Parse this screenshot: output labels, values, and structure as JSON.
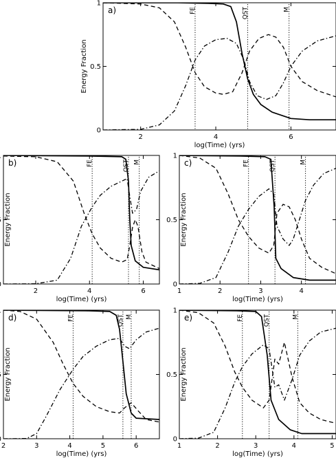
{
  "chart_data": [
    {
      "panel": "a)",
      "type": "line",
      "xlabel": "log(Time)  (yrs)",
      "ylabel": "Energy  Fraction",
      "xlim": [
        1,
        7.2
      ],
      "ylim": [
        0,
        1
      ],
      "xticks": [
        2,
        4,
        6
      ],
      "yticks": [
        0,
        0.5,
        1
      ],
      "markers": [
        {
          "label": "FE",
          "x": 3.45
        },
        {
          "label": "QST",
          "x": 4.85
        },
        {
          "label": "M",
          "x": 5.95
        }
      ],
      "series": [
        {
          "style": "solid",
          "points": [
            [
              1,
              1
            ],
            [
              3,
              1
            ],
            [
              3.8,
              0.995
            ],
            [
              4.2,
              0.99
            ],
            [
              4.4,
              0.97
            ],
            [
              4.55,
              0.85
            ],
            [
              4.7,
              0.6
            ],
            [
              4.85,
              0.4
            ],
            [
              5.0,
              0.28
            ],
            [
              5.2,
              0.2
            ],
            [
              5.5,
              0.14
            ],
            [
              6.0,
              0.09
            ],
            [
              6.5,
              0.08
            ],
            [
              7.2,
              0.08
            ]
          ]
        },
        {
          "style": "dash",
          "points": [
            [
              1,
              1
            ],
            [
              2,
              0.99
            ],
            [
              2.5,
              0.96
            ],
            [
              2.9,
              0.85
            ],
            [
              3.2,
              0.65
            ],
            [
              3.45,
              0.45
            ],
            [
              3.7,
              0.34
            ],
            [
              4.0,
              0.29
            ],
            [
              4.2,
              0.28
            ],
            [
              4.45,
              0.3
            ],
            [
              4.7,
              0.45
            ],
            [
              4.9,
              0.62
            ],
            [
              5.15,
              0.72
            ],
            [
              5.4,
              0.75
            ],
            [
              5.6,
              0.73
            ],
            [
              5.8,
              0.65
            ],
            [
              6.0,
              0.5
            ],
            [
              6.3,
              0.38
            ],
            [
              6.7,
              0.31
            ],
            [
              7.2,
              0.26
            ]
          ]
        },
        {
          "style": "dashdot",
          "points": [
            [
              1,
              0
            ],
            [
              2,
              0.005
            ],
            [
              2.5,
              0.04
            ],
            [
              2.9,
              0.15
            ],
            [
              3.2,
              0.35
            ],
            [
              3.45,
              0.55
            ],
            [
              3.7,
              0.66
            ],
            [
              4.0,
              0.71
            ],
            [
              4.3,
              0.72
            ],
            [
              4.55,
              0.68
            ],
            [
              4.75,
              0.55
            ],
            [
              4.9,
              0.38
            ],
            [
              5.1,
              0.27
            ],
            [
              5.35,
              0.24
            ],
            [
              5.6,
              0.27
            ],
            [
              5.8,
              0.37
            ],
            [
              6.0,
              0.5
            ],
            [
              6.3,
              0.62
            ],
            [
              6.7,
              0.7
            ],
            [
              7.2,
              0.74
            ]
          ]
        }
      ]
    },
    {
      "panel": "b)",
      "type": "line",
      "xlabel": "log(Time)  (yrs)",
      "ylabel": "Energy  Fraction",
      "xlim": [
        0.8,
        6.6
      ],
      "ylim": [
        0,
        1
      ],
      "xticks": [
        2,
        4,
        6
      ],
      "yticks": [
        0,
        0.5,
        1
      ],
      "markers": [
        {
          "label": "FE",
          "x": 4.1
        },
        {
          "label": "QST",
          "x": 5.45
        },
        {
          "label": "M",
          "x": 5.85
        }
      ],
      "series": [
        {
          "style": "solid",
          "points": [
            [
              0.8,
              1
            ],
            [
              4,
              0.995
            ],
            [
              5.2,
              0.99
            ],
            [
              5.35,
              0.97
            ],
            [
              5.45,
              0.8
            ],
            [
              5.5,
              0.5
            ],
            [
              5.55,
              0.3
            ],
            [
              5.7,
              0.18
            ],
            [
              6.0,
              0.13
            ],
            [
              6.6,
              0.11
            ]
          ]
        },
        {
          "style": "dash",
          "points": [
            [
              0.8,
              0.995
            ],
            [
              2,
              0.99
            ],
            [
              2.8,
              0.95
            ],
            [
              3.4,
              0.8
            ],
            [
              3.8,
              0.55
            ],
            [
              4.1,
              0.39
            ],
            [
              4.4,
              0.28
            ],
            [
              4.8,
              0.2
            ],
            [
              5.2,
              0.17
            ],
            [
              5.4,
              0.19
            ],
            [
              5.5,
              0.3
            ],
            [
              5.6,
              0.44
            ],
            [
              5.7,
              0.5
            ],
            [
              5.8,
              0.45
            ],
            [
              5.95,
              0.25
            ],
            [
              6.1,
              0.17
            ],
            [
              6.6,
              0.12
            ]
          ]
        },
        {
          "style": "dashdot",
          "points": [
            [
              0.8,
              0
            ],
            [
              2,
              0.002
            ],
            [
              2.8,
              0.03
            ],
            [
              3.3,
              0.2
            ],
            [
              3.7,
              0.45
            ],
            [
              4.1,
              0.6
            ],
            [
              4.4,
              0.69
            ],
            [
              4.8,
              0.76
            ],
            [
              5.2,
              0.8
            ],
            [
              5.4,
              0.82
            ],
            [
              5.5,
              0.68
            ],
            [
              5.6,
              0.55
            ],
            [
              5.75,
              0.58
            ],
            [
              5.9,
              0.72
            ],
            [
              6.2,
              0.83
            ],
            [
              6.6,
              0.88
            ]
          ]
        }
      ]
    },
    {
      "panel": "c)",
      "type": "line",
      "xlabel": "log(Time)  (yrs)",
      "ylabel": "Energy  Fraction",
      "xlim": [
        1,
        4.85
      ],
      "ylim": [
        0,
        1
      ],
      "xticks": [
        1,
        2,
        3,
        4
      ],
      "yticks": [
        0,
        0.5,
        1
      ],
      "markers": [
        {
          "label": "FE",
          "x": 2.7
        },
        {
          "label": "QST",
          "x": 3.35
        },
        {
          "label": "M",
          "x": 4.1
        }
      ],
      "series": [
        {
          "style": "solid",
          "points": [
            [
              1,
              1
            ],
            [
              2.5,
              0.995
            ],
            [
              3.1,
              0.99
            ],
            [
              3.25,
              0.97
            ],
            [
              3.33,
              0.6
            ],
            [
              3.37,
              0.2
            ],
            [
              3.5,
              0.12
            ],
            [
              3.8,
              0.05
            ],
            [
              4.2,
              0.03
            ],
            [
              4.85,
              0.03
            ]
          ]
        },
        {
          "style": "dash",
          "points": [
            [
              1,
              1
            ],
            [
              1.5,
              0.98
            ],
            [
              1.9,
              0.9
            ],
            [
              2.2,
              0.7
            ],
            [
              2.45,
              0.5
            ],
            [
              2.7,
              0.37
            ],
            [
              2.95,
              0.28
            ],
            [
              3.2,
              0.24
            ],
            [
              3.32,
              0.3
            ],
            [
              3.4,
              0.55
            ],
            [
              3.55,
              0.62
            ],
            [
              3.7,
              0.6
            ],
            [
              3.85,
              0.5
            ],
            [
              4.0,
              0.35
            ],
            [
              4.2,
              0.2
            ],
            [
              4.5,
              0.13
            ],
            [
              4.85,
              0.08
            ]
          ]
        },
        {
          "style": "dashdot",
          "points": [
            [
              1,
              0
            ],
            [
              1.5,
              0.005
            ],
            [
              1.9,
              0.05
            ],
            [
              2.2,
              0.25
            ],
            [
              2.45,
              0.45
            ],
            [
              2.7,
              0.58
            ],
            [
              2.95,
              0.68
            ],
            [
              3.2,
              0.74
            ],
            [
              3.32,
              0.7
            ],
            [
              3.4,
              0.45
            ],
            [
              3.55,
              0.35
            ],
            [
              3.7,
              0.3
            ],
            [
              3.8,
              0.35
            ],
            [
              3.95,
              0.5
            ],
            [
              4.1,
              0.65
            ],
            [
              4.3,
              0.77
            ],
            [
              4.55,
              0.86
            ],
            [
              4.85,
              0.9
            ]
          ]
        }
      ]
    },
    {
      "panel": "d)",
      "type": "line",
      "xlabel": "log(Time)  (yrs)",
      "ylabel": "Energy  Fraction",
      "xlim": [
        2,
        6.7
      ],
      "ylim": [
        0,
        1
      ],
      "xticks": [
        2,
        3,
        4,
        5,
        6
      ],
      "yticks": [
        0,
        0.5,
        1
      ],
      "markers": [
        {
          "label": "FE",
          "x": 4.1
        },
        {
          "label": "QST",
          "x": 5.6
        },
        {
          "label": "M",
          "x": 5.85
        }
      ],
      "series": [
        {
          "style": "solid",
          "points": [
            [
              2,
              1
            ],
            [
              4.5,
              0.995
            ],
            [
              5.2,
              0.99
            ],
            [
              5.4,
              0.96
            ],
            [
              5.5,
              0.85
            ],
            [
              5.6,
              0.6
            ],
            [
              5.7,
              0.35
            ],
            [
              5.85,
              0.2
            ],
            [
              6.0,
              0.16
            ],
            [
              6.7,
              0.15
            ]
          ]
        },
        {
          "style": "dash",
          "points": [
            [
              2,
              1
            ],
            [
              2.5,
              0.99
            ],
            [
              3.0,
              0.93
            ],
            [
              3.5,
              0.75
            ],
            [
              3.8,
              0.58
            ],
            [
              4.1,
              0.43
            ],
            [
              4.4,
              0.33
            ],
            [
              4.8,
              0.25
            ],
            [
              5.2,
              0.21
            ],
            [
              5.5,
              0.2
            ],
            [
              5.65,
              0.24
            ],
            [
              5.85,
              0.28
            ],
            [
              6.05,
              0.22
            ],
            [
              6.3,
              0.15
            ],
            [
              6.7,
              0.13
            ]
          ]
        },
        {
          "style": "dashdot",
          "points": [
            [
              2,
              0
            ],
            [
              2.7,
              0.002
            ],
            [
              3.0,
              0.04
            ],
            [
              3.3,
              0.18
            ],
            [
              3.7,
              0.38
            ],
            [
              4.1,
              0.54
            ],
            [
              4.4,
              0.64
            ],
            [
              4.8,
              0.72
            ],
            [
              5.2,
              0.77
            ],
            [
              5.5,
              0.78
            ],
            [
              5.65,
              0.72
            ],
            [
              5.8,
              0.7
            ],
            [
              6.0,
              0.77
            ],
            [
              6.3,
              0.83
            ],
            [
              6.7,
              0.86
            ]
          ]
        }
      ]
    },
    {
      "panel": "e)",
      "type": "line",
      "xlabel": "log(Time)  (yrs)",
      "ylabel": "Energy  Fraction",
      "xlim": [
        1,
        5.1
      ],
      "ylim": [
        0,
        1
      ],
      "xticks": [
        1,
        2,
        3,
        4,
        5
      ],
      "yticks": [
        0,
        0.5,
        1
      ],
      "markers": [
        {
          "label": "FE",
          "x": 2.65
        },
        {
          "label": "QST",
          "x": 3.35
        },
        {
          "label": "M",
          "x": 4.1
        }
      ],
      "series": [
        {
          "style": "solid",
          "points": [
            [
              1,
              1
            ],
            [
              2.5,
              0.995
            ],
            [
              3.0,
              0.99
            ],
            [
              3.15,
              0.95
            ],
            [
              3.3,
              0.65
            ],
            [
              3.4,
              0.3
            ],
            [
              3.6,
              0.15
            ],
            [
              3.9,
              0.07
            ],
            [
              4.2,
              0.04
            ],
            [
              5.1,
              0.04
            ]
          ]
        },
        {
          "style": "dash",
          "points": [
            [
              1,
              1
            ],
            [
              1.5,
              0.98
            ],
            [
              1.9,
              0.9
            ],
            [
              2.2,
              0.72
            ],
            [
              2.45,
              0.52
            ],
            [
              2.65,
              0.4
            ],
            [
              2.9,
              0.3
            ],
            [
              3.2,
              0.24
            ],
            [
              3.35,
              0.3
            ],
            [
              3.5,
              0.62
            ],
            [
              3.6,
              0.58
            ],
            [
              3.75,
              0.75
            ],
            [
              3.95,
              0.48
            ],
            [
              4.15,
              0.28
            ],
            [
              4.4,
              0.2
            ],
            [
              4.7,
              0.15
            ],
            [
              5.1,
              0.12
            ]
          ]
        },
        {
          "style": "dashdot",
          "points": [
            [
              1,
              0
            ],
            [
              1.5,
              0.005
            ],
            [
              1.9,
              0.05
            ],
            [
              2.2,
              0.24
            ],
            [
              2.45,
              0.44
            ],
            [
              2.65,
              0.56
            ],
            [
              2.9,
              0.66
            ],
            [
              3.2,
              0.73
            ],
            [
              3.35,
              0.7
            ],
            [
              3.5,
              0.4
            ],
            [
              3.6,
              0.42
            ],
            [
              3.75,
              0.3
            ],
            [
              3.95,
              0.46
            ],
            [
              4.15,
              0.65
            ],
            [
              4.4,
              0.76
            ],
            [
              4.7,
              0.83
            ],
            [
              5.1,
              0.86
            ]
          ]
        }
      ]
    }
  ]
}
